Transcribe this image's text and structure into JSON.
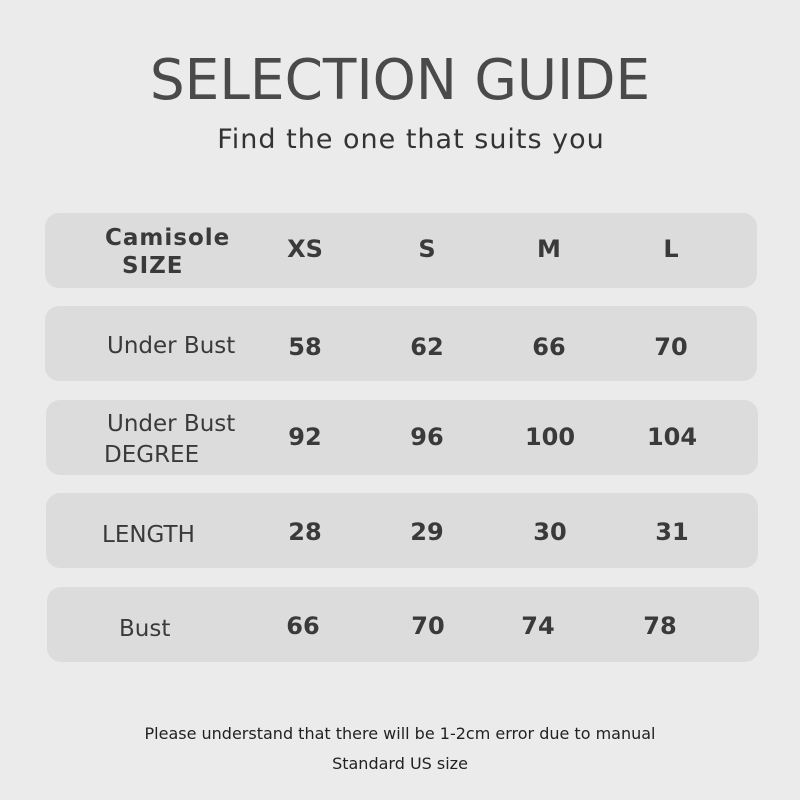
{
  "title": "SELECTION GUIDE",
  "subtitle": "Find the one that suits you",
  "table": {
    "header": {
      "label_line1": "Camisole",
      "label_line2": "SIZE",
      "sizes": [
        "XS",
        "S",
        "M",
        "L"
      ]
    },
    "rows": [
      {
        "label_line1": "Under Bust",
        "label_line2": "",
        "values": [
          "58",
          "62",
          "66",
          "70"
        ]
      },
      {
        "label_line1": "Under Bust",
        "label_line2": "DEGREE",
        "values": [
          "92",
          "96",
          "100",
          "104"
        ]
      },
      {
        "label_line1": "LENGTH",
        "label_line2": "",
        "values": [
          "28",
          "29",
          "30",
          "31"
        ]
      },
      {
        "label_line1": "Bust",
        "label_line2": "",
        "values": [
          "66",
          "70",
          "74",
          "78"
        ]
      }
    ]
  },
  "notes": [
    "Please understand that there will be 1-2cm error due to manual",
    "Standard US size"
  ],
  "colors": {
    "background": "#ebebeb",
    "row": "#dcdcdc",
    "title": "#4a4a4a"
  }
}
